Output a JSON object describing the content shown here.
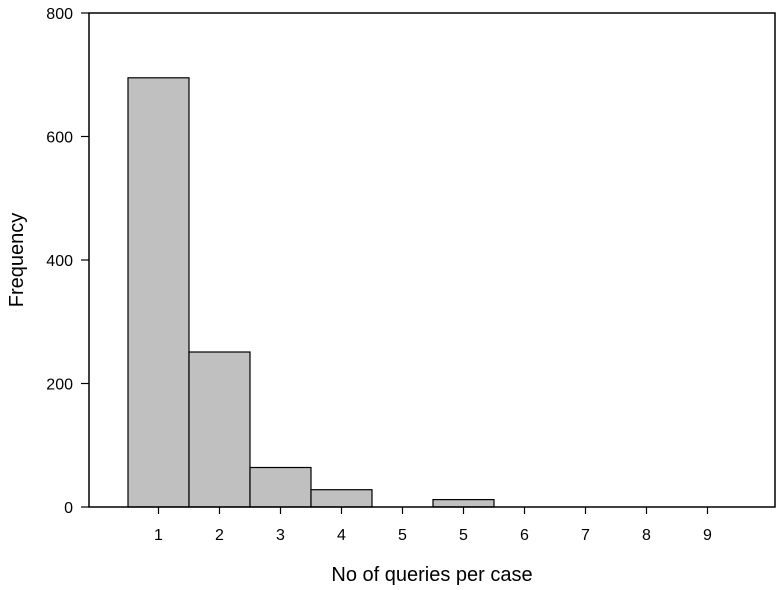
{
  "chart_data": {
    "type": "bar",
    "title": "",
    "xlabel": "No of queries per case",
    "ylabel": "Frequency",
    "ylim": [
      0,
      800
    ],
    "yticks": [
      0,
      200,
      400,
      600,
      800
    ],
    "categories": [
      "1",
      "2",
      "3",
      "4",
      "5",
      "5",
      "6",
      "7",
      "8",
      "9"
    ],
    "values": [
      695,
      251,
      64,
      28,
      0,
      12,
      0,
      0,
      0,
      0
    ],
    "grid": false,
    "legend": "none",
    "colors": {
      "bar_fill": "#c0c0c0",
      "bar_stroke": "#000000",
      "axis": "#000000"
    }
  }
}
